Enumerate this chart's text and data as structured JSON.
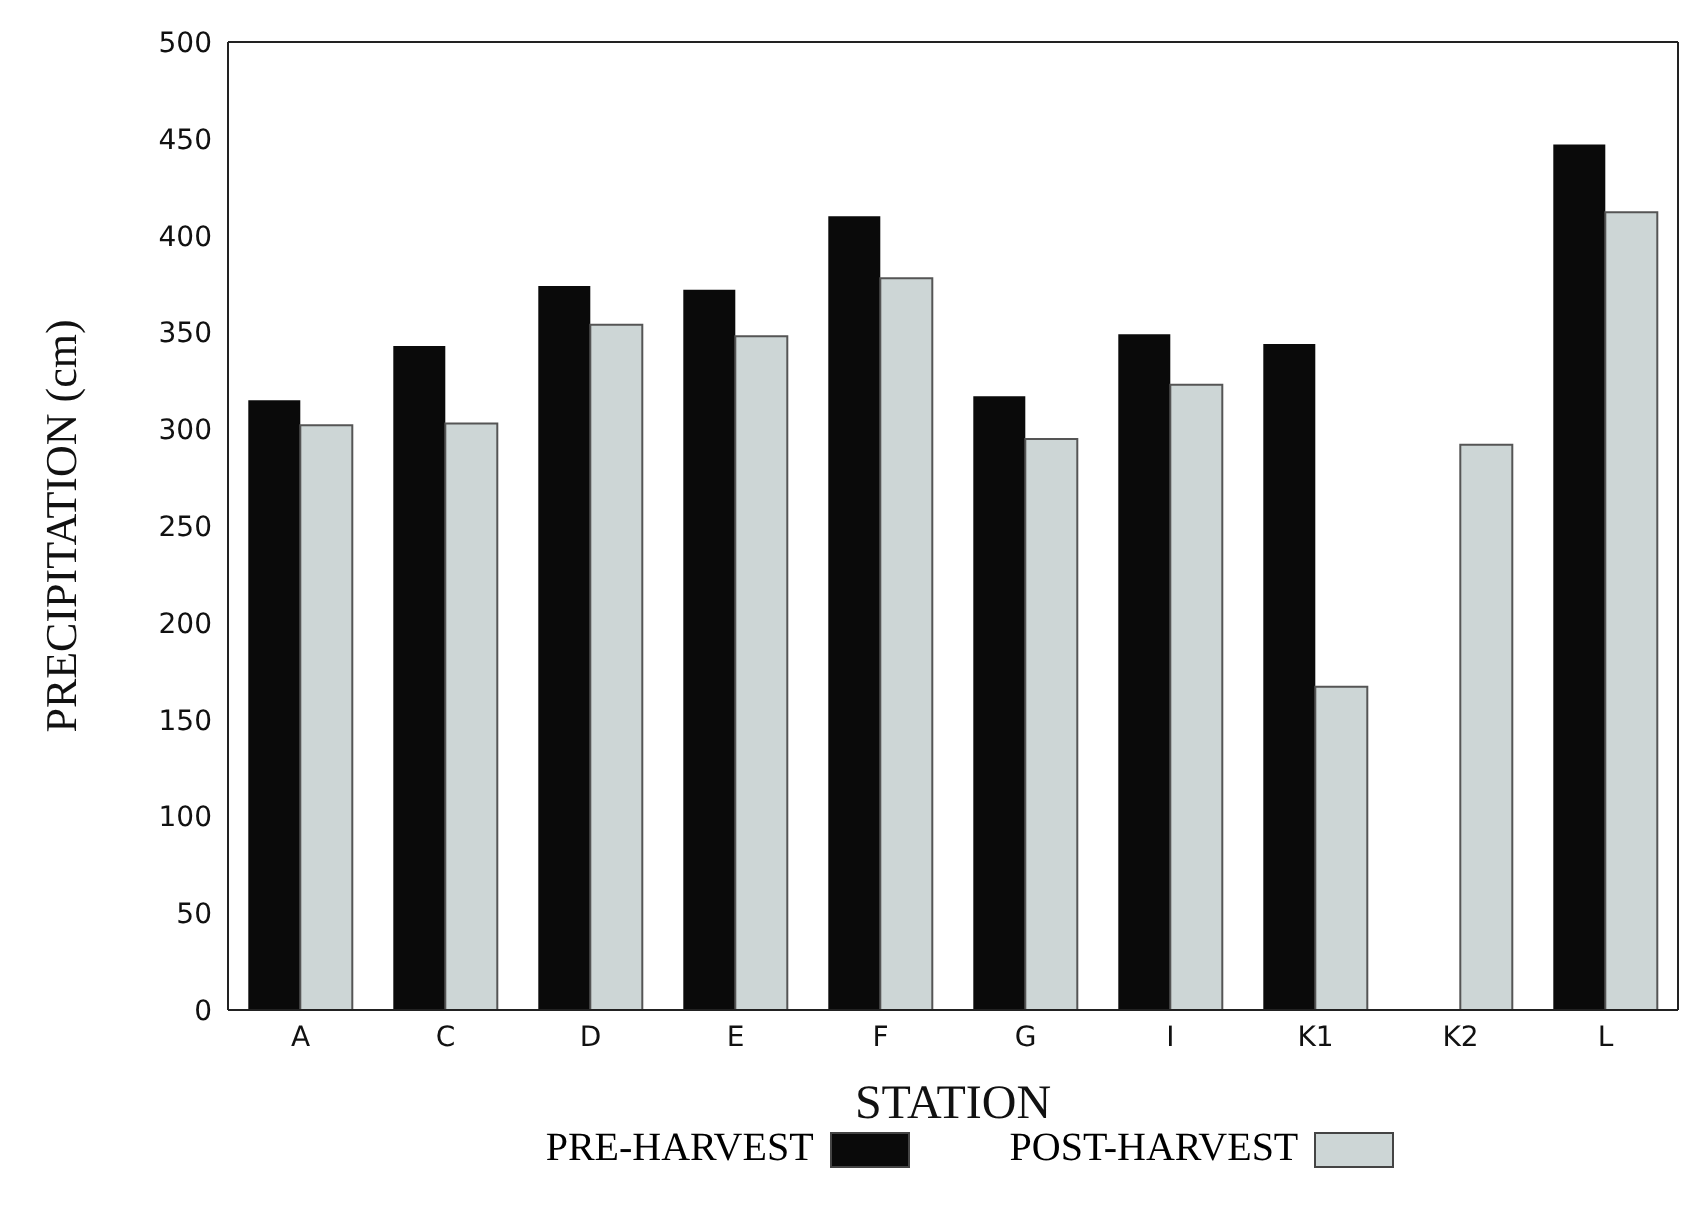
{
  "chart_data": {
    "type": "bar",
    "xlabel": "STATION",
    "ylabel": "PRECIPITATION (cm)",
    "categories": [
      "A",
      "C",
      "D",
      "E",
      "F",
      "G",
      "I",
      "K1",
      "K2",
      "L"
    ],
    "series": [
      {
        "name": "PRE-HARVEST",
        "color": "#0a0a0a",
        "values": [
          315,
          343,
          374,
          372,
          410,
          317,
          349,
          344,
          null,
          447
        ]
      },
      {
        "name": "POST-HARVEST",
        "color": "#cdd6d6",
        "values": [
          302,
          303,
          354,
          348,
          378,
          295,
          323,
          167,
          292,
          412
        ]
      }
    ],
    "ylim": [
      0,
      500
    ],
    "yticks": [
      0,
      50,
      100,
      150,
      200,
      250,
      300,
      350,
      400,
      450,
      500
    ],
    "grid": false,
    "legend": "bottom"
  }
}
